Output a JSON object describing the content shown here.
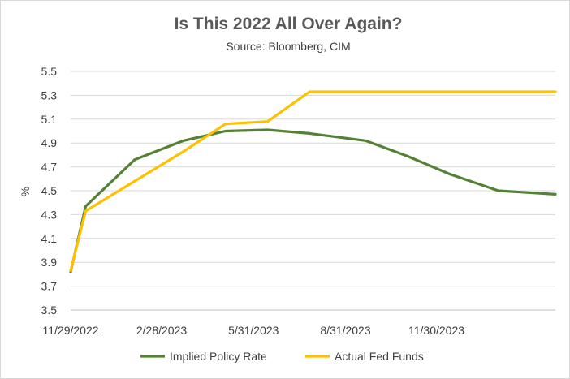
{
  "chart_data": {
    "type": "line",
    "title": "Is This 2022 All Over Again?",
    "subtitle": "Source: Bloomberg, CIM",
    "ylabel": "%",
    "xlabel": "",
    "ylim": [
      3.5,
      5.5
    ],
    "yticks": [
      3.5,
      3.7,
      3.9,
      4.1,
      4.3,
      4.5,
      4.7,
      4.9,
      5.1,
      5.3,
      5.5
    ],
    "xlim": [
      "2022-11-29",
      "2024-03-28"
    ],
    "xticks": [
      "11/29/2022",
      "2/28/2023",
      "5/31/2023",
      "8/31/2023",
      "11/30/2023"
    ],
    "grid": true,
    "legend_position": "bottom",
    "series": [
      {
        "name": "Implied Policy Rate",
        "color": "#548235",
        "points": [
          [
            "2022-11-29",
            3.82
          ],
          [
            "2022-12-14",
            4.37
          ],
          [
            "2023-02-01",
            4.76
          ],
          [
            "2023-03-22",
            4.92
          ],
          [
            "2023-05-03",
            5.0
          ],
          [
            "2023-06-14",
            5.01
          ],
          [
            "2023-07-26",
            4.98
          ],
          [
            "2023-09-20",
            4.92
          ],
          [
            "2023-11-01",
            4.79
          ],
          [
            "2023-12-13",
            4.64
          ],
          [
            "2024-01-31",
            4.5
          ],
          [
            "2024-03-28",
            4.47
          ]
        ]
      },
      {
        "name": "Actual Fed Funds",
        "color": "#ffc000",
        "points": [
          [
            "2022-11-29",
            3.83
          ],
          [
            "2022-12-14",
            4.33
          ],
          [
            "2023-02-01",
            4.58
          ],
          [
            "2023-03-22",
            4.83
          ],
          [
            "2023-05-03",
            5.06
          ],
          [
            "2023-06-14",
            5.08
          ],
          [
            "2023-07-26",
            5.33
          ],
          [
            "2023-09-20",
            5.33
          ],
          [
            "2023-11-01",
            5.33
          ],
          [
            "2023-12-13",
            5.33
          ],
          [
            "2024-01-31",
            5.33
          ],
          [
            "2024-03-28",
            5.33
          ]
        ]
      }
    ]
  }
}
